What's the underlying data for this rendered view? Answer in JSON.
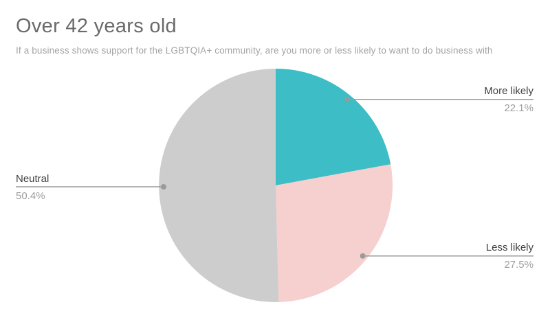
{
  "chart_data": {
    "type": "pie",
    "title": "Over 42 years old",
    "subtitle": "If a business shows support for the LGBTQIA+ community, are you more or less likely to want to do business with",
    "slices": [
      {
        "label": "More likely",
        "value": 22.1,
        "pct_label": "22.1%",
        "color": "#3DBDC6"
      },
      {
        "label": "Less likely",
        "value": 27.5,
        "pct_label": "27.5%",
        "color": "#F6CFCF"
      },
      {
        "label": "Neutral",
        "value": 50.4,
        "pct_label": "50.4%",
        "color": "#CDCDCD"
      }
    ],
    "start_angle_deg": 0,
    "direction": "clockwise",
    "legend_position": "none",
    "leader_line_color": "#9a9a9a",
    "title_color": "#6a6a6a",
    "subtitle_color": "#a3a3a3",
    "label_color": "#3f3f3f",
    "percent_color": "#9e9e9e",
    "background_color": "#ffffff"
  }
}
